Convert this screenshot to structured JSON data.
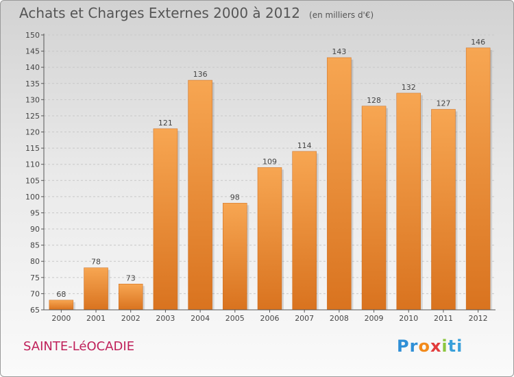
{
  "header": {
    "title": "Achats et Charges Externes 2000 à 2012",
    "unit": "(en milliers d'€)"
  },
  "commune": "SAINTE-LéOCADIE",
  "logo": {
    "text": "Proxiti",
    "parts": [
      "Pr",
      "o",
      "x",
      "i",
      "ti"
    ]
  },
  "colors": {
    "bar_light": "#f7a652",
    "bar_dark": "#d9731f",
    "commune_text": "#bf1f59",
    "axis": "#555555"
  },
  "chart_data": {
    "type": "bar",
    "title": "Achats et Charges Externes 2000 à 2012",
    "xlabel": "",
    "ylabel": "",
    "categories": [
      "2000",
      "2001",
      "2002",
      "2003",
      "2004",
      "2005",
      "2006",
      "2007",
      "2008",
      "2009",
      "2010",
      "2011",
      "2012"
    ],
    "values": [
      68,
      78,
      73,
      121,
      136,
      98,
      109,
      114,
      143,
      128,
      132,
      127,
      146
    ],
    "ylim": [
      65,
      150
    ],
    "yticks": [
      65,
      70,
      75,
      80,
      85,
      90,
      95,
      100,
      105,
      110,
      115,
      120,
      125,
      130,
      135,
      140,
      145,
      150
    ],
    "grid": "horizontal dashed",
    "data_labels": true
  }
}
